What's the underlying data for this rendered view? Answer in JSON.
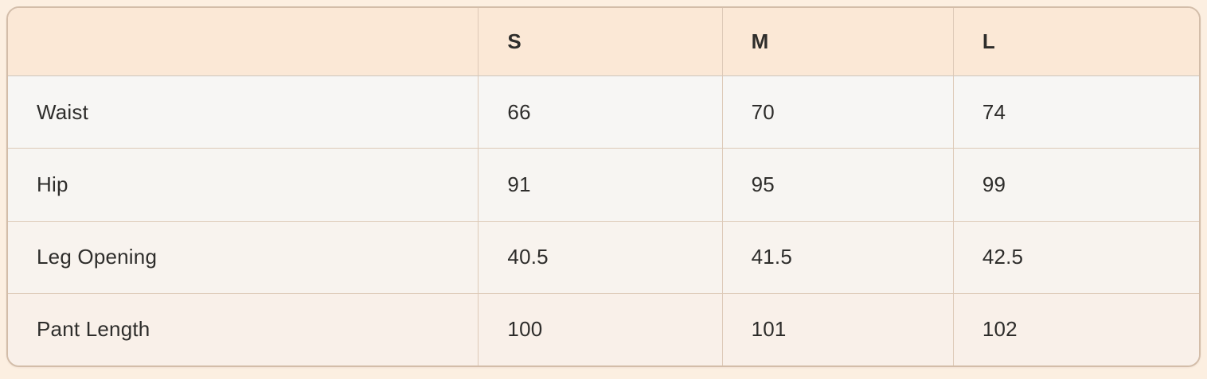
{
  "chart_data": {
    "type": "table",
    "title": "",
    "columns": [
      "",
      "S",
      "M",
      "L"
    ],
    "rows": [
      {
        "label": "Waist",
        "values": [
          "66",
          "70",
          "74"
        ]
      },
      {
        "label": "Hip",
        "values": [
          "91",
          "95",
          "99"
        ]
      },
      {
        "label": "Leg Opening",
        "values": [
          "40.5",
          "41.5",
          "42.5"
        ]
      },
      {
        "label": "Pant Length",
        "values": [
          "100",
          "101",
          "102"
        ]
      }
    ]
  },
  "colors": {
    "page-bg": "#fcefe1",
    "header-bg": "#fbe8d6",
    "outer-border": "#d3bda9",
    "grid-line": "#ddc9b7",
    "header-underline": "#ccc5be",
    "row-bg-1": "#f7f6f4",
    "row-bg-2": "#f7f5f2",
    "row-bg-3": "#f8f3ee",
    "row-bg-4": "#f9f0e9",
    "text": "#2e2d2b"
  }
}
